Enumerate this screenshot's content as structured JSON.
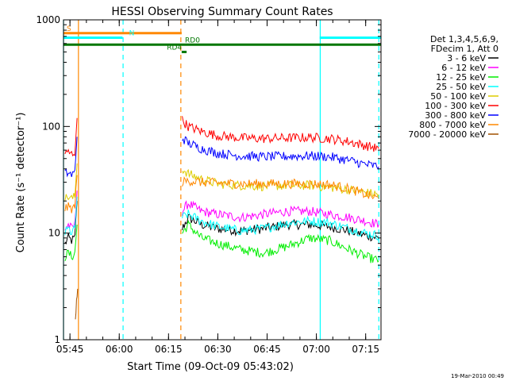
{
  "chart_data": {
    "type": "line",
    "title": "HESSI Observing Summary Count Rates",
    "xlabel": "Start Time (09-Oct-09 05:43:02)",
    "ylabel": "Count Rate (s⁻¹ detector⁻¹)",
    "yscale": "log",
    "ylim": [
      1,
      1000
    ],
    "xlim": [
      "05:43:02",
      "07:19:40"
    ],
    "grid": false,
    "legend_position": "right",
    "x_tick_labels": [
      "05:45",
      "06:00",
      "06:15",
      "06:30",
      "06:45",
      "07:00",
      "07:15"
    ],
    "y_tick_labels": [
      "1",
      "10",
      "100",
      "1000"
    ],
    "legend_header": [
      "Det 1,3,4,5,6,9,",
      "FDecim 1, Att 0"
    ],
    "timestamp": "19-Mar-2010 00:49",
    "series": [
      {
        "name": "3 - 6 keV",
        "color": "#000000",
        "segments": [
          {
            "x": [
              "05:43:30",
              "05:44:30",
              "05:45:30",
              "05:46:30",
              "05:47:10"
            ],
            "y": [
              8,
              9,
              8.5,
              9,
              20
            ]
          },
          {
            "x": [
              "06:19:10",
              "06:21:00",
              "06:25:00",
              "06:30:00",
              "06:37:00",
              "06:44:00",
              "06:51:00",
              "06:58:00",
              "07:04:00",
              "07:10:00",
              "07:15:00",
              "07:19:00"
            ],
            "y": [
              11,
              14,
              12,
              11,
              10.5,
              11,
              12,
              12,
              11.5,
              10.5,
              9.5,
              9
            ]
          }
        ]
      },
      {
        "name": "6 - 12 keV",
        "color": "#ff00ff",
        "segments": [
          {
            "x": [
              "05:43:30",
              "05:44:30",
              "05:45:30",
              "05:46:30",
              "05:47:10"
            ],
            "y": [
              11,
              12,
              11,
              12,
              25
            ]
          },
          {
            "x": [
              "06:19:10",
              "06:21:00",
              "06:25:00",
              "06:30:00",
              "06:37:00",
              "06:44:00",
              "06:51:00",
              "06:58:00",
              "07:04:00",
              "07:10:00",
              "07:15:00",
              "07:19:00"
            ],
            "y": [
              16,
              19,
              16,
              15,
              14,
              15,
              16,
              16,
              15,
              14,
              13,
              12
            ]
          }
        ]
      },
      {
        "name": "12 - 25 keV",
        "color": "#00ee00",
        "segments": [
          {
            "x": [
              "05:43:30",
              "05:44:30",
              "05:45:30",
              "05:46:30",
              "05:47:10"
            ],
            "y": [
              6,
              6.5,
              6,
              6.5,
              12
            ]
          },
          {
            "x": [
              "06:19:10",
              "06:21:00",
              "06:25:00",
              "06:30:00",
              "06:37:00",
              "06:44:00",
              "06:51:00",
              "06:58:00",
              "07:04:00",
              "07:10:00",
              "07:15:00",
              "07:19:00"
            ],
            "y": [
              10,
              12,
              9,
              8,
              7,
              6.5,
              7.5,
              9,
              8.5,
              7,
              6,
              5.5
            ]
          }
        ]
      },
      {
        "name": "25 - 50 keV",
        "color": "#00ffff",
        "segments": [
          {
            "x": [
              "05:43:30",
              "05:44:30",
              "05:45:30",
              "05:46:30",
              "05:47:10"
            ],
            "y": [
              10,
              11,
              10,
              11,
              22
            ]
          },
          {
            "x": [
              "06:19:10",
              "06:21:00",
              "06:25:00",
              "06:30:00",
              "06:37:00",
              "06:44:00",
              "06:51:00",
              "06:58:00",
              "07:04:00",
              "07:10:00",
              "07:15:00",
              "07:19:00"
            ],
            "y": [
              14,
              15,
              13,
              11.5,
              10.5,
              11,
              12.5,
              13,
              12.5,
              11,
              10,
              9.5
            ]
          }
        ]
      },
      {
        "name": "50 - 100 keV",
        "color": "#ddcc00",
        "segments": [
          {
            "x": [
              "05:43:30",
              "05:44:30",
              "05:45:30",
              "05:46:30",
              "05:47:10"
            ],
            "y": [
              21,
              22,
              21,
              22,
              45
            ]
          },
          {
            "x": [
              "06:19:10",
              "06:21:00",
              "06:25:00",
              "06:30:00",
              "06:37:00",
              "06:44:00",
              "06:51:00",
              "06:58:00",
              "07:04:00",
              "07:10:00",
              "07:15:00",
              "07:19:00"
            ],
            "y": [
              40,
              36,
              32,
              29,
              28,
              27.5,
              28,
              28,
              27,
              25.5,
              24,
              23
            ]
          }
        ]
      },
      {
        "name": "100 - 300 keV",
        "color": "#ff0000",
        "segments": [
          {
            "x": [
              "05:43:30",
              "05:44:30",
              "05:45:30",
              "05:46:30",
              "05:47:10"
            ],
            "y": [
              55,
              57,
              55,
              58,
              120
            ]
          },
          {
            "x": [
              "06:19:10",
              "06:21:00",
              "06:25:00",
              "06:30:00",
              "06:37:00",
              "06:44:00",
              "06:51:00",
              "06:58:00",
              "07:04:00",
              "07:10:00",
              "07:15:00",
              "07:19:00"
            ],
            "y": [
              115,
              100,
              90,
              82,
              78,
              77,
              78,
              79,
              77,
              72,
              66,
              62
            ]
          }
        ]
      },
      {
        "name": "300 - 800 keV",
        "color": "#0000ff",
        "segments": [
          {
            "x": [
              "05:43:30",
              "05:44:30",
              "05:45:30",
              "05:46:30",
              "05:47:10"
            ],
            "y": [
              36,
              37,
              35,
              37,
              80
            ]
          },
          {
            "x": [
              "06:19:10",
              "06:21:00",
              "06:25:00",
              "06:30:00",
              "06:37:00",
              "06:44:00",
              "06:51:00",
              "06:58:00",
              "07:04:00",
              "07:10:00",
              "07:15:00",
              "07:19:00"
            ],
            "y": [
              78,
              70,
              62,
              56,
              53,
              52,
              52.5,
              53,
              52,
              48,
              44,
              42
            ]
          }
        ]
      },
      {
        "name": "800 - 7000 keV",
        "color": "#ff8800",
        "segments": [
          {
            "x": [
              "05:43:30",
              "05:44:30",
              "05:45:30",
              "05:46:30",
              "05:47:10"
            ],
            "y": [
              17,
              17.5,
              17,
              17.5,
              35
            ]
          },
          {
            "x": [
              "06:19:10",
              "06:21:00",
              "06:25:00",
              "06:30:00",
              "06:37:00",
              "06:44:00",
              "06:51:00",
              "06:58:00",
              "07:04:00",
              "07:10:00",
              "07:15:00",
              "07:19:00"
            ],
            "y": [
              30,
              31,
              30,
              29.5,
              29,
              29,
              29,
              29,
              28.5,
              26,
              23,
              21
            ]
          }
        ]
      },
      {
        "name": "7000 - 20000 keV",
        "color": "#a05000",
        "segments": [
          {
            "x": [
              "05:46:40",
              "05:47:00",
              "05:47:20"
            ],
            "y": [
              1.5,
              2.5,
              3
            ]
          }
        ]
      }
    ],
    "flag_bars": [
      {
        "label": "S",
        "color": "#ff8800",
        "start": "05:43:02",
        "end": "06:19:00",
        "y": 750,
        "label_at": "05:44:00"
      },
      {
        "label": "N",
        "color": "#00ffff",
        "start": "05:43:02",
        "end": "06:01:00",
        "y": 680,
        "label_at": "06:03:00",
        "extra": {
          "start": "07:01:00",
          "end": "07:19:40"
        }
      },
      {
        "label": "RD0",
        "color": "#007700",
        "start": "05:43:02",
        "end": "07:19:40",
        "y": 585,
        "label_at": "06:20:00"
      },
      {
        "label": "RD4",
        "color": "#007700",
        "start": "06:19:00",
        "end": "06:20:30",
        "y": 500,
        "label_at": "06:14:30"
      }
    ],
    "vertical_lines": [
      {
        "time": "05:43:02",
        "color": "#00ffff",
        "style": "solid"
      },
      {
        "time": "05:47:35",
        "color": "#ff8800",
        "style": "solid"
      },
      {
        "time": "06:01:10",
        "color": "#00ffff",
        "style": "dashed"
      },
      {
        "time": "06:18:45",
        "color": "#ff8800",
        "style": "dashed"
      },
      {
        "time": "07:01:10",
        "color": "#00ffff",
        "style": "solid"
      },
      {
        "time": "07:19:00",
        "color": "#00ffff",
        "style": "dashed"
      }
    ]
  }
}
